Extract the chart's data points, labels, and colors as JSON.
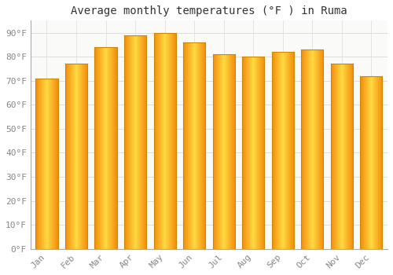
{
  "title": "Average monthly temperatures (°F ) in Ruma",
  "months": [
    "Jan",
    "Feb",
    "Mar",
    "Apr",
    "May",
    "Jun",
    "Jul",
    "Aug",
    "Sep",
    "Oct",
    "Nov",
    "Dec"
  ],
  "values": [
    71,
    77,
    84,
    89,
    90,
    86,
    81,
    80,
    82,
    83,
    77,
    72
  ],
  "bar_color_main": "#FFA500",
  "bar_color_light": "#FFD050",
  "bar_edge_color": "#CC8800",
  "ylim": [
    0,
    95
  ],
  "yticks": [
    0,
    10,
    20,
    30,
    40,
    50,
    60,
    70,
    80,
    90
  ],
  "ytick_labels": [
    "0°F",
    "10°F",
    "20°F",
    "30°F",
    "40°F",
    "50°F",
    "60°F",
    "70°F",
    "80°F",
    "90°F"
  ],
  "background_color": "#FFFFFF",
  "plot_bg_color": "#FAFAF8",
  "grid_color": "#DDDDDD",
  "title_fontsize": 10,
  "tick_fontsize": 8,
  "bar_width": 0.75
}
